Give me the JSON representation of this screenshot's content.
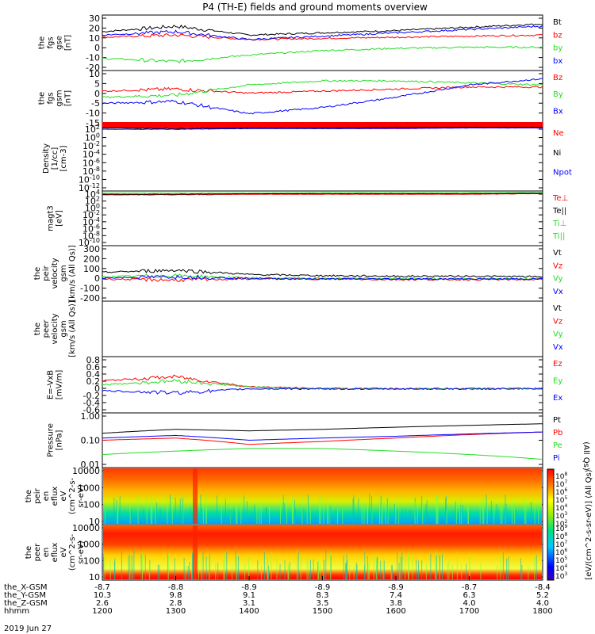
{
  "title": "P4 (TH-E) fields and ground moments overview",
  "colors": {
    "black": "#000000",
    "red": "#ff0000",
    "green": "#22dd22",
    "blue": "#0000ff"
  },
  "panels": [
    {
      "id": "fgs-gse",
      "ylabel": [
        "the",
        "fgs",
        "gse",
        "[nT]"
      ],
      "yticks": [
        "30",
        "20",
        "10",
        "0",
        "-10",
        "-20"
      ],
      "legend": [
        {
          "label": "Bt",
          "color": "black"
        },
        {
          "label": "bz",
          "color": "red"
        },
        {
          "label": "by",
          "color": "green"
        },
        {
          "label": "bx",
          "color": "blue"
        }
      ]
    },
    {
      "id": "fgs-gsm",
      "ylabel": [
        "the",
        "fgs",
        "gsm",
        "[nT]"
      ],
      "yticks": [
        "10",
        "5",
        "0",
        "-5",
        "-10",
        "-15"
      ],
      "legend": [
        {
          "label": "Bz",
          "color": "red"
        },
        {
          "label": "By",
          "color": "green"
        },
        {
          "label": "Bx",
          "color": "blue"
        }
      ]
    },
    {
      "id": "density",
      "ylabel": [
        "Density",
        "[1/cc]",
        "[cm-3]"
      ],
      "yticks": [
        "10^2",
        "10^0",
        "10^-2",
        "10^-4",
        "10^-6",
        "10^-8",
        "10^-10",
        "10^-12"
      ],
      "legend": [
        {
          "label": "Ne",
          "color": "red"
        },
        {
          "label": "Ni",
          "color": "black"
        },
        {
          "label": "Npot",
          "color": "blue"
        }
      ]
    },
    {
      "id": "temperature",
      "ylabel": [
        "magt3",
        "[eV]"
      ],
      "yticks": [
        "10^4",
        "10^2",
        "10^0",
        "10^-2",
        "10^-4",
        "10^-6",
        "10^-8",
        "10^-10"
      ],
      "legend": [
        {
          "label": "Te⊥",
          "color": "red"
        },
        {
          "label": "Te||",
          "color": "black"
        },
        {
          "label": "Ti⊥",
          "color": "green"
        },
        {
          "label": "Ti||",
          "color": "green"
        }
      ]
    },
    {
      "id": "peir-velocity",
      "ylabel": [
        "the",
        "peir",
        "velocity",
        "gsm",
        "[km/s (All Qs)]"
      ],
      "yticks": [
        "300",
        "200",
        "100",
        "0",
        "-100",
        "-200"
      ],
      "legend": [
        {
          "label": "Vt",
          "color": "black"
        },
        {
          "label": "Vz",
          "color": "red"
        },
        {
          "label": "Vy",
          "color": "green"
        },
        {
          "label": "Vx",
          "color": "blue"
        }
      ]
    },
    {
      "id": "peer-velocity",
      "ylabel": [
        "the",
        "peer",
        "velocity",
        "gsm",
        "[km/s (All Qs)]"
      ],
      "yticks": [],
      "legend": [
        {
          "label": "Vt",
          "color": "black"
        },
        {
          "label": "Vz",
          "color": "red"
        },
        {
          "label": "Vy",
          "color": "green"
        },
        {
          "label": "Vx",
          "color": "blue"
        }
      ]
    },
    {
      "id": "efield",
      "ylabel": [
        "E=-VxB",
        "[mV/m]"
      ],
      "yticks": [
        "0.8",
        "0.6",
        "0.4",
        "0.2",
        "0",
        "-0.2",
        "-0.4",
        "-0.6"
      ],
      "legend": [
        {
          "label": "Ez",
          "color": "red"
        },
        {
          "label": "Ey",
          "color": "green"
        },
        {
          "label": "Ex",
          "color": "blue"
        }
      ]
    },
    {
      "id": "pressure",
      "ylabel": [
        "Pressure",
        "[nPa]"
      ],
      "yticks": [
        "1.00",
        "0.10",
        "0.01"
      ],
      "legend": [
        {
          "label": "Pt",
          "color": "black"
        },
        {
          "label": "Pb",
          "color": "red"
        },
        {
          "label": "Pe",
          "color": "green"
        },
        {
          "label": "Pi",
          "color": "blue"
        }
      ],
      "side_label": "(All Qs)"
    },
    {
      "id": "peir-eflux",
      "ylabel": [
        "the",
        "peir",
        "en",
        "eflux",
        "eV",
        "(cm^2-s-",
        "sr-eV)"
      ],
      "yticks": [
        "10000",
        "1000",
        "100",
        "10"
      ]
    },
    {
      "id": "peer-eflux",
      "ylabel": [
        "the",
        "peer",
        "en",
        "eflux",
        "eV",
        "(cm^2-s-",
        "sr-eV)"
      ],
      "yticks": [
        "10000",
        "1000",
        "100",
        "10"
      ]
    }
  ],
  "colorbar": {
    "label": "[eV/(cm^2-s-sr-eV)] (All Qs)",
    "upper_ticks": [
      "10^8",
      "10^7",
      "10^6",
      "10^5",
      "10^4",
      "10^3",
      "10^2"
    ],
    "lower_ticks": [
      "10^9",
      "10^8",
      "10^7",
      "10^6",
      "10^5",
      "10^4",
      "10^3"
    ]
  },
  "x_axis": {
    "rows": [
      {
        "name": "the_X-GSM",
        "values": [
          "-8.7",
          "-8.8",
          "-8.9",
          "-8.9",
          "-8.9",
          "-8.7",
          "-8.4"
        ]
      },
      {
        "name": "the_Y-GSM",
        "values": [
          "10.3",
          "9.8",
          "9.1",
          "8.3",
          "7.4",
          "6.3",
          "5.2"
        ]
      },
      {
        "name": "the_Z-GSM",
        "values": [
          "2.6",
          "2.8",
          "3.1",
          "3.5",
          "3.8",
          "4.0",
          "4.0"
        ]
      },
      {
        "name": "hhmm",
        "values": [
          "1200",
          "1300",
          "1400",
          "1500",
          "1600",
          "1700",
          "1800"
        ]
      }
    ],
    "date": "2019 Jun 27"
  },
  "chart_data": {
    "type": "line",
    "title": "P4 (TH-E) fields and ground moments overview",
    "x": [
      "1200",
      "1300",
      "1400",
      "1500",
      "1600",
      "1700",
      "1800"
    ],
    "xlabel": "hhmm",
    "panels": [
      {
        "name": "the fgs gse [nT]",
        "ylim": [
          -20,
          30
        ],
        "series": [
          {
            "name": "Bt",
            "values": [
              15,
              20,
              12,
              14,
              16,
              19,
              22
            ]
          },
          {
            "name": "bz",
            "values": [
              10,
              12,
              8,
              9,
              10,
              11,
              12
            ]
          },
          {
            "name": "by",
            "values": [
              -9,
              -12,
              -6,
              -2,
              0,
              1,
              1
            ]
          },
          {
            "name": "bx",
            "values": [
              12,
              15,
              8,
              11,
              14,
              17,
              20
            ]
          }
        ]
      },
      {
        "name": "the fgs gsm [nT]",
        "ylim": [
          -17,
          10
        ],
        "series": [
          {
            "name": "Bz",
            "values": [
              0,
              1,
              -1,
              0,
              1,
              2,
              2
            ]
          },
          {
            "name": "By",
            "values": [
              -3,
              -2,
              3,
              5,
              5,
              4,
              3
            ]
          },
          {
            "name": "Bx",
            "values": [
              -6,
              -5,
              -11,
              -8,
              -3,
              3,
              6
            ]
          }
        ]
      },
      {
        "name": "the peir velocity gsm [km/s (All Qs)]",
        "ylim": [
          -200,
          300
        ],
        "series": [
          {
            "name": "Vt",
            "values": [
              60,
              80,
              40,
              30,
              25,
              25,
              20
            ]
          },
          {
            "name": "Vz",
            "values": [
              0,
              -10,
              0,
              0,
              -5,
              -5,
              -5
            ]
          },
          {
            "name": "Vy",
            "values": [
              20,
              30,
              10,
              5,
              5,
              0,
              0
            ]
          },
          {
            "name": "Vx",
            "values": [
              10,
              20,
              5,
              0,
              0,
              0,
              0
            ]
          }
        ]
      },
      {
        "name": "E=-VxB [mV/m]",
        "ylim": [
          -0.6,
          0.8
        ],
        "series": [
          {
            "name": "Ez",
            "values": [
              0.2,
              0.3,
              0.05,
              0.0,
              0.0,
              0.0,
              0.0
            ]
          },
          {
            "name": "Ey",
            "values": [
              0.1,
              0.2,
              0.05,
              0.0,
              0.0,
              0.0,
              0.0
            ]
          },
          {
            "name": "Ex",
            "values": [
              -0.05,
              -0.1,
              0.0,
              0.0,
              0.0,
              0.0,
              0.0
            ]
          }
        ]
      },
      {
        "name": "Pressure [nPa]",
        "ylim": [
          0.01,
          1.0
        ],
        "scale": "log",
        "series": [
          {
            "name": "Pt",
            "values": [
              0.18,
              0.25,
              0.22,
              0.25,
              0.3,
              0.35,
              0.4
            ]
          },
          {
            "name": "Pb",
            "values": [
              0.1,
              0.12,
              0.07,
              0.09,
              0.12,
              0.16,
              0.2
            ]
          },
          {
            "name": "Pe",
            "values": [
              0.03,
              0.04,
              0.05,
              0.05,
              0.04,
              0.03,
              0.02
            ]
          },
          {
            "name": "Pi",
            "values": [
              0.12,
              0.15,
              0.1,
              0.12,
              0.14,
              0.17,
              0.2
            ]
          }
        ]
      }
    ]
  }
}
